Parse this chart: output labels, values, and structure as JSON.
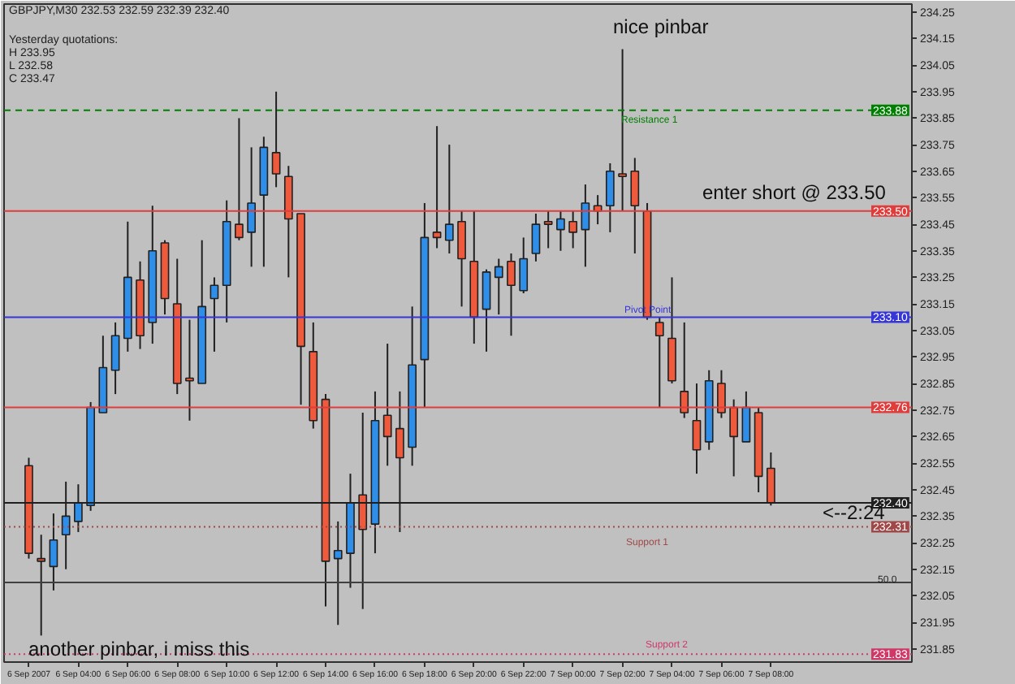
{
  "chart_data": {
    "type": "candlestick",
    "title": "GBPJPY,M30  232.53 232.59 232.39 232.40",
    "x": [
      "2007-09-06T02:00",
      "2007-09-06T02:30",
      "2007-09-06T03:00",
      "2007-09-06T03:30",
      "2007-09-06T04:00",
      "2007-09-06T04:30",
      "2007-09-06T05:00",
      "2007-09-06T05:30",
      "2007-09-06T06:00",
      "2007-09-06T06:30",
      "2007-09-06T07:00",
      "2007-09-06T07:30",
      "2007-09-06T08:00",
      "2007-09-06T08:30",
      "2007-09-06T09:00",
      "2007-09-06T09:30",
      "2007-09-06T10:00",
      "2007-09-06T10:30",
      "2007-09-06T11:00",
      "2007-09-06T11:30",
      "2007-09-06T12:00",
      "2007-09-06T12:30",
      "2007-09-06T13:00",
      "2007-09-06T13:30",
      "2007-09-06T14:00",
      "2007-09-06T14:30",
      "2007-09-06T15:00",
      "2007-09-06T15:30",
      "2007-09-06T16:00",
      "2007-09-06T16:30",
      "2007-09-06T17:00",
      "2007-09-06T17:30",
      "2007-09-06T18:00",
      "2007-09-06T18:30",
      "2007-09-06T19:00",
      "2007-09-06T19:30",
      "2007-09-06T20:00",
      "2007-09-06T20:30",
      "2007-09-06T21:00",
      "2007-09-06T21:30",
      "2007-09-06T22:00",
      "2007-09-06T22:30",
      "2007-09-06T23:00",
      "2007-09-06T23:30",
      "2007-09-07T00:00",
      "2007-09-07T00:30",
      "2007-09-07T01:00",
      "2007-09-07T01:30",
      "2007-09-07T02:00",
      "2007-09-07T02:30",
      "2007-09-07T03:00",
      "2007-09-07T03:30",
      "2007-09-07T04:00",
      "2007-09-07T04:30",
      "2007-09-07T05:00",
      "2007-09-07T05:30",
      "2007-09-07T06:00",
      "2007-09-07T06:30",
      "2007-09-07T07:00",
      "2007-09-07T07:30",
      "2007-09-07T08:00"
    ],
    "ohlc": [
      [
        232.54,
        232.57,
        232.19,
        232.21
      ],
      [
        232.19,
        232.28,
        231.9,
        232.18
      ],
      [
        232.16,
        232.36,
        232.07,
        232.26
      ],
      [
        232.28,
        232.48,
        232.15,
        232.35
      ],
      [
        232.33,
        232.47,
        232.29,
        232.4
      ],
      [
        232.39,
        232.78,
        232.37,
        232.76
      ],
      [
        232.74,
        233.03,
        232.74,
        232.91
      ],
      [
        232.9,
        233.08,
        232.81,
        233.03
      ],
      [
        233.02,
        233.46,
        232.97,
        233.25
      ],
      [
        233.24,
        233.31,
        232.98,
        233.03
      ],
      [
        233.08,
        233.52,
        233.0,
        233.35
      ],
      [
        233.38,
        233.39,
        233.11,
        233.17
      ],
      [
        233.15,
        233.32,
        232.81,
        232.85
      ],
      [
        232.87,
        233.09,
        232.71,
        232.86
      ],
      [
        232.85,
        233.39,
        232.85,
        233.14
      ],
      [
        233.17,
        233.25,
        232.97,
        233.22
      ],
      [
        233.22,
        233.54,
        233.08,
        233.46
      ],
      [
        233.45,
        233.85,
        233.39,
        233.4
      ],
      [
        233.42,
        233.74,
        233.29,
        233.53
      ],
      [
        233.56,
        233.78,
        233.29,
        233.74
      ],
      [
        233.72,
        233.95,
        233.59,
        233.64
      ],
      [
        233.63,
        233.67,
        233.25,
        233.47
      ],
      [
        233.49,
        233.49,
        232.77,
        232.99
      ],
      [
        232.97,
        233.08,
        232.68,
        232.71
      ],
      [
        232.79,
        232.81,
        232.01,
        232.18
      ],
      [
        232.19,
        232.33,
        231.94,
        232.22
      ],
      [
        232.21,
        232.51,
        232.08,
        232.4
      ],
      [
        232.43,
        232.74,
        232.0,
        232.3
      ],
      [
        232.32,
        232.82,
        232.21,
        232.71
      ],
      [
        232.73,
        233.0,
        232.54,
        232.65
      ],
      [
        232.68,
        232.82,
        232.29,
        232.57
      ],
      [
        232.61,
        233.14,
        232.54,
        232.92
      ],
      [
        232.94,
        233.53,
        232.76,
        233.4
      ],
      [
        233.42,
        233.82,
        233.36,
        233.4
      ],
      [
        233.39,
        233.75,
        233.34,
        233.45
      ],
      [
        233.46,
        233.5,
        233.14,
        233.32
      ],
      [
        233.31,
        233.5,
        233.0,
        233.1
      ],
      [
        233.13,
        233.28,
        232.97,
        233.27
      ],
      [
        233.25,
        233.32,
        233.11,
        233.29
      ],
      [
        233.31,
        233.34,
        233.03,
        233.22
      ],
      [
        233.2,
        233.4,
        233.19,
        233.32
      ],
      [
        233.34,
        233.49,
        233.31,
        233.45
      ],
      [
        233.46,
        233.5,
        233.36,
        233.45
      ],
      [
        233.43,
        233.5,
        233.35,
        233.47
      ],
      [
        233.46,
        233.5,
        233.36,
        233.42
      ],
      [
        233.43,
        233.6,
        233.29,
        233.53
      ],
      [
        233.52,
        233.56,
        233.45,
        233.5
      ],
      [
        233.52,
        233.68,
        233.42,
        233.65
      ],
      [
        233.64,
        234.11,
        233.5,
        233.63
      ],
      [
        233.65,
        233.7,
        233.34,
        233.52
      ],
      [
        233.5,
        233.53,
        233.09,
        233.1
      ],
      [
        233.08,
        233.1,
        232.76,
        233.03
      ],
      [
        233.02,
        233.25,
        232.85,
        232.86
      ],
      [
        232.82,
        233.08,
        232.72,
        232.74
      ],
      [
        232.71,
        232.85,
        232.51,
        232.6
      ],
      [
        232.63,
        232.9,
        232.6,
        232.86
      ],
      [
        232.85,
        232.9,
        232.72,
        232.74
      ],
      [
        232.76,
        232.79,
        232.5,
        232.65
      ],
      [
        232.63,
        232.82,
        232.63,
        232.76
      ],
      [
        232.74,
        232.76,
        232.44,
        232.5
      ],
      [
        232.53,
        232.59,
        232.39,
        232.4
      ]
    ],
    "colors": [
      "#f05a3c",
      "#f05a3c",
      "#2e8ee8",
      "#2e8ee8",
      "#2e8ee8",
      "#2e8ee8",
      "#2e8ee8",
      "#2e8ee8",
      "#2e8ee8",
      "#f05a3c",
      "#2e8ee8",
      "#f05a3c",
      "#f05a3c",
      "#f05a3c",
      "#2e8ee8",
      "#2e8ee8",
      "#2e8ee8",
      "#f05a3c",
      "#2e8ee8",
      "#2e8ee8",
      "#f05a3c",
      "#f05a3c",
      "#f05a3c",
      "#f05a3c",
      "#f05a3c",
      "#2e8ee8",
      "#2e8ee8",
      "#f05a3c",
      "#2e8ee8",
      "#f05a3c",
      "#f05a3c",
      "#2e8ee8",
      "#2e8ee8",
      "#f05a3c",
      "#2e8ee8",
      "#f05a3c",
      "#f05a3c",
      "#2e8ee8",
      "#2e8ee8",
      "#f05a3c",
      "#2e8ee8",
      "#2e8ee8",
      "#f05a3c",
      "#2e8ee8",
      "#f05a3c",
      "#2e8ee8",
      "#f05a3c",
      "#2e8ee8",
      "#f05a3c",
      "#f05a3c",
      "#f05a3c",
      "#f05a3c",
      "#f05a3c",
      "#f05a3c",
      "#f05a3c",
      "#2e8ee8",
      "#f05a3c",
      "#f05a3c",
      "#2e8ee8",
      "#f05a3c",
      "#f05a3c"
    ],
    "xlim": [
      "2007-09-06T01:00",
      "2007-09-07T13:42"
    ],
    "xticks": [
      {
        "value": "2007-09-06T02:00",
        "label": "6 Sep 2007"
      },
      {
        "value": "2007-09-06T04:00",
        "label": "6 Sep 04:00"
      },
      {
        "value": "2007-09-06T06:00",
        "label": "6 Sep 06:00"
      },
      {
        "value": "2007-09-06T08:00",
        "label": "6 Sep 08:00"
      },
      {
        "value": "2007-09-06T10:00",
        "label": "6 Sep 10:00"
      },
      {
        "value": "2007-09-06T12:00",
        "label": "6 Sep 12:00"
      },
      {
        "value": "2007-09-06T14:00",
        "label": "6 Sep 14:00"
      },
      {
        "value": "2007-09-06T16:00",
        "label": "6 Sep 16:00"
      },
      {
        "value": "2007-09-06T18:00",
        "label": "6 Sep 18:00"
      },
      {
        "value": "2007-09-06T20:00",
        "label": "6 Sep 20:00"
      },
      {
        "value": "2007-09-06T22:00",
        "label": "6 Sep 22:00"
      },
      {
        "value": "2007-09-07T00:00",
        "label": "7 Sep 00:00"
      },
      {
        "value": "2007-09-07T02:00",
        "label": "7 Sep 02:00"
      },
      {
        "value": "2007-09-07T04:00",
        "label": "7 Sep 04:00"
      },
      {
        "value": "2007-09-07T06:00",
        "label": "7 Sep 06:00"
      },
      {
        "value": "2007-09-07T08:00",
        "label": "7 Sep 08:00"
      }
    ],
    "ylim": [
      231.8,
      234.28
    ],
    "yticks": [
      {
        "value": 234.25,
        "label": "234.25"
      },
      {
        "value": 234.15,
        "label": "234.15"
      },
      {
        "value": 234.05,
        "label": "234.05"
      },
      {
        "value": 233.95,
        "label": "233.95"
      },
      {
        "value": 233.85,
        "label": "233.85"
      },
      {
        "value": 233.75,
        "label": "233.75"
      },
      {
        "value": 233.65,
        "label": "233.65"
      },
      {
        "value": 233.55,
        "label": "233.55"
      },
      {
        "value": 233.45,
        "label": "233.45"
      },
      {
        "value": 233.35,
        "label": "233.35"
      },
      {
        "value": 233.25,
        "label": "233.25"
      },
      {
        "value": 233.15,
        "label": "233.15"
      },
      {
        "value": 233.05,
        "label": "233.05"
      },
      {
        "value": 232.95,
        "label": "232.95"
      },
      {
        "value": 232.85,
        "label": "232.85"
      },
      {
        "value": 232.75,
        "label": "232.75"
      },
      {
        "value": 232.65,
        "label": "232.65"
      },
      {
        "value": 232.55,
        "label": "232.55"
      },
      {
        "value": 232.45,
        "label": "232.45"
      },
      {
        "value": 232.35,
        "label": "232.35"
      },
      {
        "value": 232.25,
        "label": "232.25"
      },
      {
        "value": 232.15,
        "label": "232.15"
      },
      {
        "value": 232.05,
        "label": "232.05"
      },
      {
        "value": 231.95,
        "label": "231.95"
      },
      {
        "value": 231.85,
        "label": "231.85"
      }
    ],
    "grid": false,
    "ref_lines": [
      {
        "axis": "y",
        "value": 233.88,
        "label": "233.88",
        "color": "#008000",
        "line_style": "dashed"
      },
      {
        "axis": "y",
        "value": 233.5,
        "label": "233.50",
        "color": "#e03c3c",
        "line_style": "solid"
      },
      {
        "axis": "y",
        "value": 233.1,
        "label": "233.10",
        "color": "#3535d8",
        "line_style": "solid"
      },
      {
        "axis": "y",
        "value": 232.76,
        "label": "232.76",
        "color": "#e03c3c",
        "line_style": "solid"
      },
      {
        "axis": "y",
        "value": 232.4,
        "label": "232.40",
        "color": "#202020",
        "line_style": "solid"
      },
      {
        "axis": "y",
        "value": 232.31,
        "label": "232.31",
        "color": "#a04848",
        "line_style": "dotted"
      },
      {
        "axis": "y",
        "value": 232.1,
        "color": "#404040",
        "line_style": "solid"
      },
      {
        "axis": "y",
        "value": 231.83,
        "label": "231.83",
        "color": "#d03868",
        "line_style": "dotted"
      }
    ],
    "annotations": [
      "Yesterday quotations:",
      "H 233.95",
      "L 232.58",
      "C 233.47",
      "nice pinbar",
      "enter short @ 233.50",
      "<--2:24",
      "another pinbar, i miss this",
      "Resistance 1",
      "Pivot Point",
      "Support 1",
      "Support 2",
      "50.0"
    ]
  }
}
